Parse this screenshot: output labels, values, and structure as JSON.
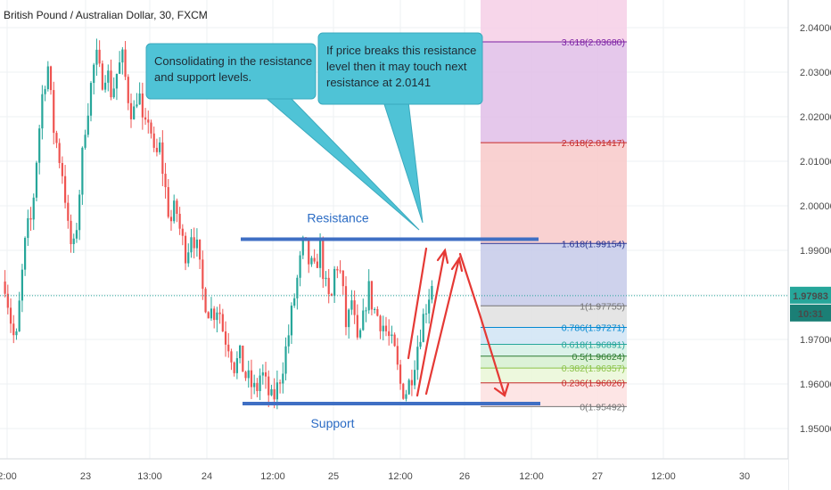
{
  "chart_data": {
    "type": "candlestick",
    "title": "British Pound / Australian Dollar, 30, FXCM",
    "ylim": [
      1.9442,
      2.0445
    ],
    "x_tick_labels": [
      "2:00",
      "23",
      "13:00",
      "24",
      "12:00",
      "25",
      "12:00",
      "26",
      "12:00",
      "27",
      "12:00",
      "30"
    ],
    "y_tick_labels": [
      "2.04000",
      "2.03000",
      "2.02000",
      "2.01000",
      "2.00000",
      "1.99000",
      "1.98000",
      "1.97000",
      "1.96000",
      "1.95000"
    ],
    "y_tick_values": [
      2.04,
      2.03,
      2.02,
      2.01,
      2.0,
      1.99,
      1.98,
      1.97,
      1.96,
      1.95
    ],
    "current_price": {
      "label": "1.97983",
      "value": 1.97983,
      "time": "10:31",
      "color": "#26a69a"
    },
    "ohlc_path": [
      1.983,
      1.975,
      1.968,
      1.982,
      1.994,
      1.997,
      2.012,
      2.025,
      2.032,
      2.018,
      2.012,
      2.006,
      1.992,
      1.99,
      2.004,
      2.018,
      2.026,
      2.034,
      2.028,
      2.031,
      2.025,
      2.03,
      2.033,
      2.025,
      2.02,
      2.027,
      2.015,
      2.021,
      2.01,
      2.013,
      2.004,
      1.996,
      2.0,
      1.993,
      1.989,
      1.995,
      1.99,
      1.981,
      1.977,
      1.976,
      1.978,
      1.971,
      1.969,
      1.964,
      1.966,
      1.962,
      1.96,
      1.958,
      1.963,
      1.959,
      1.956,
      1.959,
      1.964,
      1.97,
      1.978,
      1.985,
      1.992,
      1.987,
      1.985,
      1.991,
      1.982,
      1.977,
      1.988,
      1.984,
      1.972,
      1.979,
      1.968,
      1.973,
      1.982,
      1.977,
      1.975,
      1.973,
      1.97,
      1.967,
      1.96,
      1.958,
      1.961,
      1.967,
      1.973,
      1.978,
      1.983
    ],
    "annotations": [
      {
        "text": "Consolidating in the resistance and support levels."
      },
      {
        "text": "If price breaks this resistance level then it may touch next resistance at 2.0141"
      },
      {
        "text": "Resistance",
        "value": 1.9925
      },
      {
        "text": "Support",
        "value": 1.9556
      }
    ],
    "fibonacci": [
      {
        "label": "3.618(2.03680)",
        "value": 2.0368,
        "color": "#7b1fa2"
      },
      {
        "label": "2.618(2.01417)",
        "value": 2.01417,
        "color": "#c62828"
      },
      {
        "label": "1.618(1.99154)",
        "value": 1.99154,
        "color": "#283593"
      },
      {
        "label": "1(1.97755)",
        "value": 1.97755,
        "color": "#757575"
      },
      {
        "label": "0.786(1.97271)",
        "value": 1.97271,
        "color": "#0288d1"
      },
      {
        "label": "0.618(1.96891)",
        "value": 1.96891,
        "color": "#26a69a"
      },
      {
        "label": "0.5(1.96624)",
        "value": 1.96624,
        "color": "#2e7d32"
      },
      {
        "label": "0.382(1.96357)",
        "value": 1.96357,
        "color": "#8bc34a"
      },
      {
        "label": "0.236(1.96026)",
        "value": 1.96026,
        "color": "#c62828"
      },
      {
        "label": "0(1.95492)",
        "value": 1.95492,
        "color": "#757575"
      }
    ],
    "fib_zone_colors": [
      "#e1bee7",
      "#f8c9c9",
      "#c5cae9",
      "#e0e0e0",
      "#d0e4f5",
      "#d5f0e5",
      "#d6f0d0",
      "#eaf7d7",
      "#fde0e0"
    ],
    "colors": {
      "up": "#26a69a",
      "down": "#ef5350",
      "level": "#3f6fc4",
      "callout": "#4fc3d6",
      "arrow": "#e53935",
      "top_band": "#f6cfe6"
    }
  }
}
